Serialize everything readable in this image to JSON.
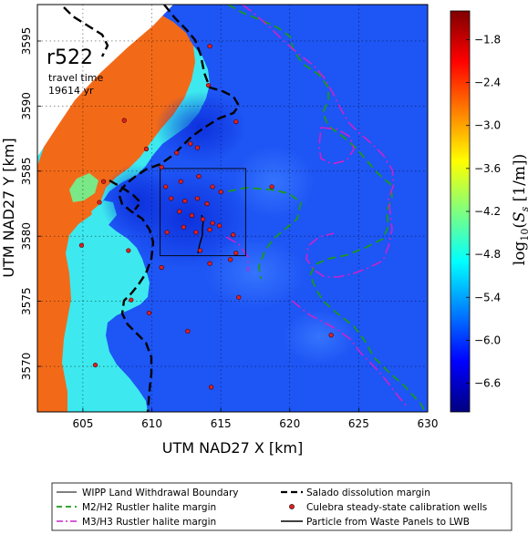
{
  "chart_data": {
    "type": "heatmap",
    "panel_label": "r522",
    "annotation": {
      "line1": "travel time",
      "line2": "19614 yr"
    },
    "xlabel": "UTM NAD27 X [km]",
    "ylabel": "UTM NAD27 Y [km]",
    "xlim": [
      601.7,
      630.0
    ],
    "ylim": [
      3566.5,
      3597.8
    ],
    "x_ticks": [
      605,
      610,
      615,
      620,
      625,
      630
    ],
    "y_ticks": [
      3570,
      3575,
      3580,
      3585,
      3590,
      3595
    ],
    "grid": true,
    "colorbar": {
      "label": "log10(Ss [1/m])",
      "range": [
        -7.0,
        -1.4
      ],
      "ticks": [
        -1.8,
        -2.4,
        -3.0,
        -3.6,
        -4.2,
        -4.8,
        -5.4,
        -6.0,
        -6.6
      ],
      "colormap": [
        "#00007f",
        "#0000ff",
        "#007fff",
        "#00ffff",
        "#7fff7f",
        "#ffff00",
        "#ff7f00",
        "#ff0000",
        "#7f0000"
      ]
    },
    "regions": [
      {
        "name": "orange zone",
        "value": -2.3,
        "color": "#f26a18"
      },
      {
        "name": "cyan zone",
        "value": -5.0,
        "color": "#3de9ee"
      },
      {
        "name": "blue zone",
        "value": -6.2,
        "color": "#1e55f5"
      },
      {
        "name": "dark blue zone",
        "value": -6.6,
        "color": "#0c30dd"
      },
      {
        "name": "no data",
        "value": null,
        "color": "#ffffff"
      }
    ],
    "wipp_boundary": {
      "x": [
        610.6,
        616.8
      ],
      "y": [
        3578.5,
        3585.2
      ]
    },
    "wells": [
      {
        "x": 614.2,
        "y": 3594.6
      },
      {
        "x": 614.1,
        "y": 3591.6
      },
      {
        "x": 608.0,
        "y": 3588.9
      },
      {
        "x": 616.1,
        "y": 3588.8
      },
      {
        "x": 609.6,
        "y": 3586.7
      },
      {
        "x": 612.8,
        "y": 3587.1
      },
      {
        "x": 611.8,
        "y": 3586.4
      },
      {
        "x": 613.3,
        "y": 3586.8
      },
      {
        "x": 610.7,
        "y": 3585.3
      },
      {
        "x": 611.0,
        "y": 3583.8
      },
      {
        "x": 612.1,
        "y": 3584.2
      },
      {
        "x": 613.4,
        "y": 3584.6
      },
      {
        "x": 614.4,
        "y": 3583.8
      },
      {
        "x": 611.4,
        "y": 3582.9
      },
      {
        "x": 612.4,
        "y": 3582.7
      },
      {
        "x": 613.3,
        "y": 3582.9
      },
      {
        "x": 614.0,
        "y": 3582.5
      },
      {
        "x": 615.0,
        "y": 3583.4
      },
      {
        "x": 612.0,
        "y": 3581.9
      },
      {
        "x": 612.9,
        "y": 3581.6
      },
      {
        "x": 613.7,
        "y": 3581.3
      },
      {
        "x": 614.4,
        "y": 3581.0
      },
      {
        "x": 612.3,
        "y": 3580.7
      },
      {
        "x": 613.2,
        "y": 3580.3
      },
      {
        "x": 614.2,
        "y": 3580.5
      },
      {
        "x": 614.9,
        "y": 3580.8
      },
      {
        "x": 611.1,
        "y": 3580.3
      },
      {
        "x": 615.9,
        "y": 3580.1
      },
      {
        "x": 616.1,
        "y": 3578.7
      },
      {
        "x": 615.7,
        "y": 3578.2
      },
      {
        "x": 613.5,
        "y": 3578.9
      },
      {
        "x": 614.2,
        "y": 3577.9
      },
      {
        "x": 610.7,
        "y": 3577.6
      },
      {
        "x": 618.7,
        "y": 3583.8
      },
      {
        "x": 606.5,
        "y": 3584.2
      },
      {
        "x": 606.2,
        "y": 3582.6
      },
      {
        "x": 604.9,
        "y": 3579.3
      },
      {
        "x": 608.3,
        "y": 3578.9
      },
      {
        "x": 608.5,
        "y": 3575.1
      },
      {
        "x": 609.8,
        "y": 3574.1
      },
      {
        "x": 612.6,
        "y": 3572.7
      },
      {
        "x": 616.3,
        "y": 3575.3
      },
      {
        "x": 623.0,
        "y": 3572.4
      },
      {
        "x": 605.9,
        "y": 3570.1
      },
      {
        "x": 614.3,
        "y": 3568.4
      }
    ],
    "legend": [
      {
        "label": "WIPP Land Withdrawal Boundary",
        "style": "thin-solid",
        "color": "#000000"
      },
      {
        "label": "Salado dissolution margin",
        "style": "dashed-thick",
        "color": "#000000"
      },
      {
        "label": "M2/H2 Rustler halite margin",
        "style": "dashed",
        "color": "#1a9a1a"
      },
      {
        "label": "Culebra steady-state calibration wells",
        "style": "marker",
        "color": "#e02020"
      },
      {
        "label": "M3/H3 Rustler halite margin",
        "style": "dashdot",
        "color": "#cc22cc"
      },
      {
        "label": "Particle from Waste Panels to LWB",
        "style": "solid",
        "color": "#000000"
      }
    ]
  }
}
